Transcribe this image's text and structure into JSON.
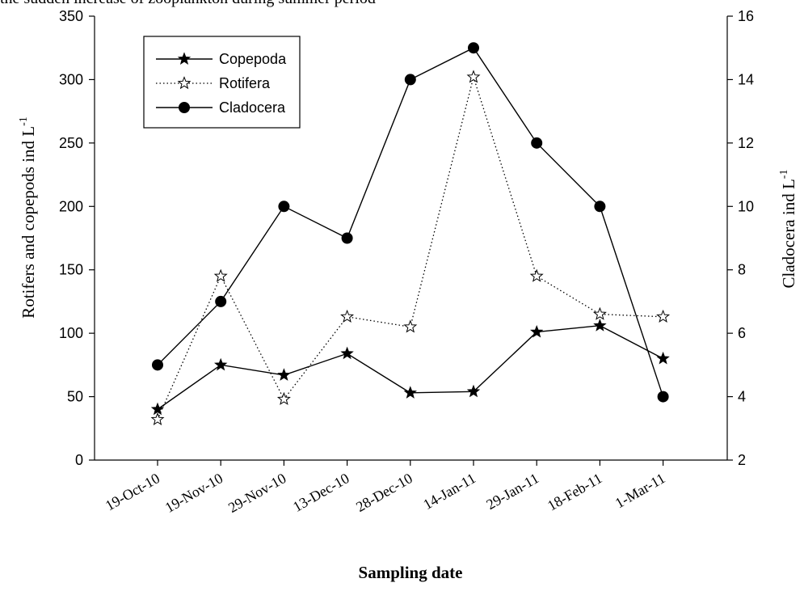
{
  "caption": "the sudden increase of zooplankton during summer period",
  "chart_data": {
    "type": "line",
    "categories": [
      "19-Oct-10",
      "19-Nov-10",
      "29-Nov-10",
      "13-Dec-10",
      "28-Dec-10",
      "14-Jan-11",
      "29-Jan-11",
      "18-Feb-11",
      "1-Mar-11"
    ],
    "xlabel": "Sampling date",
    "ylabel_left": {
      "main": "Rotifers and copepods  ind L",
      "sup": "-1"
    },
    "ylabel_right": {
      "main": "Cladocera ind L",
      "sup": "-1"
    },
    "ylim_left": [
      0,
      350
    ],
    "ylim_right": [
      2,
      16
    ],
    "yticks_left": [
      0,
      50,
      100,
      150,
      200,
      250,
      300,
      350
    ],
    "yticks_right": [
      2,
      4,
      6,
      8,
      10,
      12,
      14,
      16
    ],
    "legend_position": "top-left",
    "grid": false,
    "series": [
      {
        "name": "Copepoda",
        "axis": "left",
        "line": "solid",
        "marker": "filled-star",
        "values": [
          40,
          75,
          67,
          84,
          53,
          54,
          101,
          106,
          80
        ]
      },
      {
        "name": "Rotifera",
        "axis": "left",
        "line": "dotted",
        "marker": "open-star",
        "values": [
          32,
          145,
          48,
          113,
          105,
          302,
          145,
          115,
          113
        ]
      },
      {
        "name": "Cladocera",
        "axis": "right",
        "line": "solid",
        "marker": "filled-circle",
        "values": [
          5,
          7,
          10,
          9,
          14,
          15,
          12,
          10,
          4
        ]
      }
    ]
  }
}
